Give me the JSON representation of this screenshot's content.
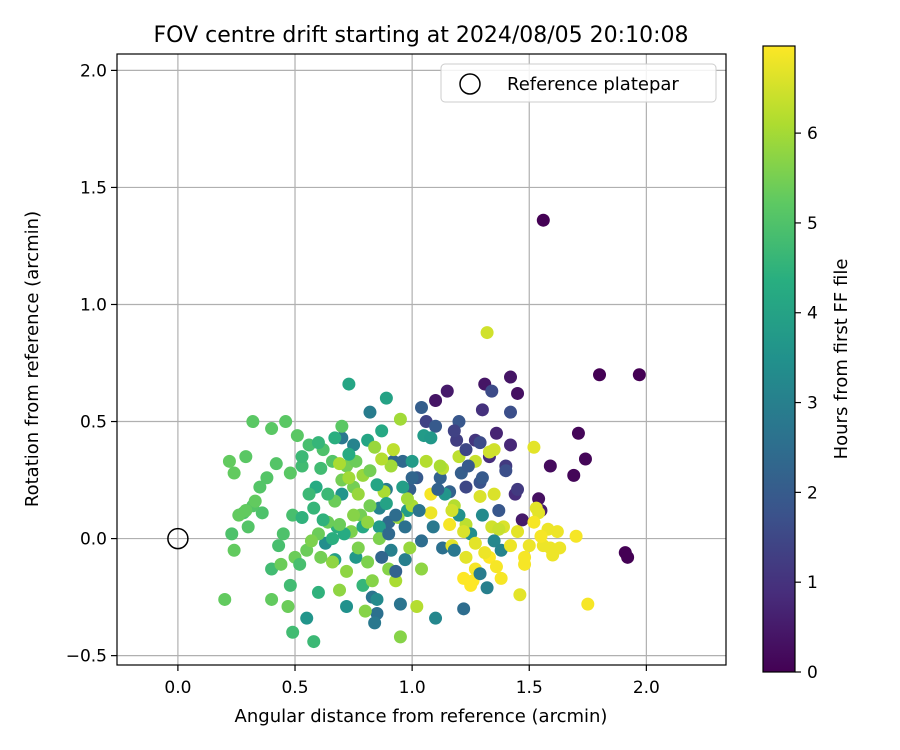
{
  "chart_data": {
    "type": "scatter",
    "title": "FOV centre drift starting at 2024/08/05 20:10:08",
    "xlabel": "Angular distance from reference (arcmin)",
    "ylabel": "Rotation from reference (arcmin)",
    "xlim": [
      -0.26,
      2.34
    ],
    "ylim": [
      -0.54,
      2.07
    ],
    "xticks": [
      0.0,
      0.5,
      1.0,
      1.5,
      2.0
    ],
    "xtick_labels": [
      "0.0",
      "0.5",
      "1.0",
      "1.5",
      "2.0"
    ],
    "yticks": [
      -0.5,
      0.0,
      0.5,
      1.0,
      1.5,
      2.0
    ],
    "ytick_labels": [
      "−0.5",
      "0.0",
      "0.5",
      "1.0",
      "1.5",
      "2.0"
    ],
    "grid": true,
    "legend": {
      "placement": "top-right",
      "entries": [
        "Reference platepar"
      ]
    },
    "reference_point": {
      "x": 0.0,
      "y": 0.0
    },
    "colorbar": {
      "label": "Hours from first FF file",
      "colormap": "viridis",
      "min": 0,
      "max": 6.97,
      "ticks": [
        0,
        1,
        2,
        3,
        4,
        5,
        6
      ],
      "tick_labels": [
        "0",
        "1",
        "2",
        "3",
        "4",
        "5",
        "6"
      ]
    },
    "points": [
      [
        1.56,
        1.36,
        0.0
      ],
      [
        1.8,
        0.7,
        0.0
      ],
      [
        1.97,
        0.7,
        0.0
      ],
      [
        1.91,
        -0.06,
        0.0
      ],
      [
        1.92,
        -0.08,
        0.0
      ],
      [
        1.71,
        0.45,
        0.1
      ],
      [
        1.74,
        0.34,
        0.1
      ],
      [
        1.69,
        0.27,
        0.1
      ],
      [
        1.59,
        0.31,
        0.2
      ],
      [
        1.54,
        0.17,
        0.3
      ],
      [
        1.45,
        0.62,
        0.3
      ],
      [
        1.42,
        0.69,
        0.4
      ],
      [
        1.31,
        0.66,
        0.4
      ],
      [
        1.1,
        0.59,
        0.4
      ],
      [
        1.15,
        0.63,
        0.5
      ],
      [
        1.47,
        0.08,
        0.5
      ],
      [
        1.55,
        0.12,
        0.6
      ],
      [
        1.36,
        0.45,
        0.7
      ],
      [
        1.42,
        0.4,
        0.8
      ],
      [
        1.33,
        0.35,
        0.9
      ],
      [
        1.44,
        0.19,
        0.9
      ],
      [
        1.3,
        0.55,
        1.0
      ],
      [
        1.27,
        0.42,
        1.1
      ],
      [
        1.4,
        0.31,
        1.2
      ],
      [
        1.19,
        0.42,
        1.3
      ],
      [
        1.06,
        0.5,
        1.4
      ],
      [
        1.23,
        0.22,
        1.5
      ],
      [
        1.34,
        0.63,
        1.6
      ],
      [
        1.42,
        0.54,
        1.7
      ],
      [
        1.29,
        0.24,
        1.8
      ],
      [
        1.2,
        0.5,
        1.9
      ],
      [
        1.1,
        0.48,
        2.0
      ],
      [
        1.02,
        0.26,
        2.0
      ],
      [
        0.99,
        0.21,
        2.1
      ],
      [
        1.04,
        0.56,
        2.1
      ],
      [
        1.12,
        0.26,
        2.2
      ],
      [
        1.16,
        0.2,
        2.2
      ],
      [
        0.92,
        0.33,
        2.3
      ],
      [
        1.0,
        0.26,
        2.3
      ],
      [
        0.9,
        0.07,
        2.4
      ],
      [
        0.96,
        0.33,
        2.4
      ],
      [
        1.04,
        -0.01,
        2.5
      ],
      [
        1.22,
        -0.3,
        2.5
      ],
      [
        1.13,
        -0.04,
        2.6
      ],
      [
        0.85,
        -0.32,
        2.6
      ],
      [
        0.83,
        -0.25,
        2.7
      ],
      [
        0.95,
        -0.28,
        2.7
      ],
      [
        0.84,
        -0.36,
        2.8
      ],
      [
        0.7,
        0.43,
        2.8
      ],
      [
        0.82,
        0.54,
        2.9
      ],
      [
        0.89,
        0.21,
        2.9
      ],
      [
        0.91,
        -0.05,
        3.0
      ],
      [
        0.97,
        -0.09,
        3.0
      ],
      [
        0.75,
        0.4,
        3.1
      ],
      [
        0.86,
        0.13,
        3.1
      ],
      [
        1.1,
        -0.34,
        3.2
      ],
      [
        0.85,
        -0.26,
        3.3
      ],
      [
        0.63,
        -0.02,
        3.4
      ],
      [
        0.72,
        -0.29,
        3.5
      ],
      [
        0.55,
        -0.34,
        3.6
      ],
      [
        0.7,
        0.19,
        3.6
      ],
      [
        0.76,
        -0.08,
        3.7
      ],
      [
        0.86,
        0.05,
        3.8
      ],
      [
        0.98,
        0.12,
        3.8
      ],
      [
        0.67,
        -0.09,
        3.9
      ],
      [
        0.89,
        0.6,
        4.0
      ],
      [
        0.73,
        0.66,
        4.1
      ],
      [
        0.81,
        0.42,
        4.1
      ],
      [
        0.87,
        0.46,
        4.2
      ],
      [
        0.59,
        0.22,
        4.3
      ],
      [
        0.68,
        0.05,
        4.4
      ],
      [
        0.6,
        -0.23,
        4.5
      ],
      [
        0.79,
        -0.2,
        4.6
      ],
      [
        0.58,
        -0.44,
        4.7
      ],
      [
        0.49,
        -0.4,
        4.8
      ],
      [
        0.4,
        -0.13,
        4.8
      ],
      [
        0.43,
        -0.03,
        4.9
      ],
      [
        0.49,
        0.1,
        4.9
      ],
      [
        0.36,
        0.11,
        5.0
      ],
      [
        0.23,
        0.02,
        5.0
      ],
      [
        0.28,
        0.11,
        5.0
      ],
      [
        0.32,
        0.14,
        5.1
      ],
      [
        0.38,
        0.26,
        5.1
      ],
      [
        0.42,
        0.32,
        5.1
      ],
      [
        0.48,
        0.28,
        5.2
      ],
      [
        0.51,
        0.44,
        5.2
      ],
      [
        0.46,
        0.5,
        5.2
      ],
      [
        0.4,
        0.47,
        5.2
      ],
      [
        0.32,
        0.5,
        5.2
      ],
      [
        0.29,
        0.35,
        5.2
      ],
      [
        0.22,
        0.33,
        5.3
      ],
      [
        0.24,
        0.28,
        5.3
      ],
      [
        0.26,
        0.1,
        5.3
      ],
      [
        0.29,
        0.12,
        5.3
      ],
      [
        0.33,
        0.16,
        5.3
      ],
      [
        0.24,
        -0.05,
        5.3
      ],
      [
        0.2,
        -0.26,
        5.3
      ],
      [
        0.4,
        -0.26,
        5.3
      ],
      [
        0.47,
        -0.29,
        5.4
      ],
      [
        0.44,
        -0.11,
        5.4
      ],
      [
        0.5,
        -0.08,
        5.4
      ],
      [
        0.55,
        -0.05,
        5.4
      ],
      [
        0.6,
        0.02,
        5.4
      ],
      [
        0.64,
        0.07,
        5.4
      ],
      [
        0.67,
        0.16,
        5.4
      ],
      [
        0.7,
        0.25,
        5.5
      ],
      [
        0.72,
        0.31,
        5.5
      ],
      [
        0.75,
        0.22,
        5.5
      ],
      [
        0.78,
        0.1,
        5.5
      ],
      [
        0.74,
        0.03,
        5.6
      ],
      [
        0.77,
        -0.04,
        5.6
      ],
      [
        0.81,
        -0.1,
        5.6
      ],
      [
        0.83,
        -0.18,
        5.7
      ],
      [
        0.8,
        -0.31,
        5.7
      ],
      [
        0.95,
        -0.42,
        5.7
      ],
      [
        0.66,
        -0.1,
        5.8
      ],
      [
        0.69,
        -0.22,
        5.8
      ],
      [
        0.72,
        -0.14,
        5.8
      ],
      [
        0.79,
        0.27,
        5.9
      ],
      [
        0.84,
        0.39,
        5.9
      ],
      [
        0.95,
        0.51,
        6.0
      ],
      [
        0.91,
        0.31,
        6.0
      ],
      [
        0.88,
        0.2,
        6.1
      ],
      [
        0.93,
        -0.18,
        6.1
      ],
      [
        1.02,
        -0.29,
        6.2
      ],
      [
        1.06,
        0.33,
        6.2
      ],
      [
        1.13,
        0.3,
        6.3
      ],
      [
        1.2,
        0.35,
        6.3
      ],
      [
        1.27,
        0.33,
        6.4
      ],
      [
        1.32,
        0.88,
        6.5
      ],
      [
        1.33,
        0.37,
        6.5
      ],
      [
        1.35,
        0.38,
        6.5
      ],
      [
        1.29,
        0.18,
        6.6
      ],
      [
        1.35,
        0.19,
        6.6
      ],
      [
        1.39,
        0.05,
        6.6
      ],
      [
        1.52,
        0.39,
        6.7
      ],
      [
        1.53,
        0.13,
        6.7
      ],
      [
        1.54,
        0.11,
        6.7
      ],
      [
        1.45,
        0.03,
        6.7
      ],
      [
        1.5,
        -0.03,
        6.8
      ],
      [
        1.56,
        -0.03,
        6.8
      ],
      [
        1.58,
        0.04,
        6.8
      ],
      [
        1.62,
        0.03,
        6.8
      ],
      [
        1.63,
        -0.04,
        6.8
      ],
      [
        1.6,
        -0.07,
        6.8
      ],
      [
        1.7,
        0.01,
        6.9
      ],
      [
        1.75,
        -0.28,
        6.9
      ],
      [
        1.48,
        -0.08,
        6.9
      ],
      [
        1.48,
        -0.11,
        6.9
      ],
      [
        1.38,
        -0.17,
        6.9
      ],
      [
        1.27,
        -0.13,
        6.9
      ],
      [
        1.26,
        -0.18,
        7.0
      ],
      [
        1.25,
        -0.2,
        7.0
      ],
      [
        1.22,
        -0.17,
        7.0
      ],
      [
        1.33,
        -0.08,
        7.0
      ],
      [
        1.08,
        0.19,
        6.9
      ],
      [
        1.16,
        0.06,
        6.9
      ],
      [
        1.08,
        0.11,
        6.8
      ],
      [
        1.17,
        -0.03,
        6.7
      ],
      [
        1.23,
        -0.08,
        6.7
      ],
      [
        1.34,
        0.05,
        6.5
      ],
      [
        1.37,
        0.04,
        6.4
      ],
      [
        1.23,
        0.06,
        6.3
      ],
      [
        1.18,
        0.14,
        6.2
      ],
      [
        1.12,
        0.31,
        6.1
      ],
      [
        1.0,
        0.14,
        6.1
      ],
      [
        0.98,
        0.17,
        6.0
      ],
      [
        0.94,
        0.09,
        5.9
      ],
      [
        0.99,
        -0.04,
        5.9
      ],
      [
        1.04,
        -0.13,
        5.8
      ],
      [
        0.9,
        -0.13,
        5.7
      ],
      [
        0.86,
        0.0,
        5.6
      ],
      [
        0.82,
        0.14,
        5.5
      ],
      [
        0.82,
        0.29,
        5.5
      ],
      [
        0.76,
        0.33,
        5.4
      ],
      [
        0.7,
        0.48,
        5.2
      ],
      [
        0.66,
        0.33,
        5.1
      ],
      [
        0.62,
        0.38,
        5.0
      ],
      [
        0.56,
        0.4,
        4.9
      ],
      [
        0.53,
        0.31,
        4.8
      ],
      [
        0.61,
        0.3,
        4.8
      ],
      [
        0.64,
        0.19,
        4.7
      ],
      [
        0.58,
        0.13,
        4.6
      ],
      [
        0.62,
        0.08,
        4.5
      ],
      [
        0.53,
        0.09,
        4.5
      ],
      [
        0.66,
        0.0,
        4.4
      ],
      [
        0.71,
        0.02,
        4.3
      ],
      [
        0.79,
        0.05,
        4.2
      ],
      [
        0.85,
        0.23,
        4.1
      ],
      [
        0.89,
        0.15,
        4.0
      ],
      [
        0.96,
        0.22,
        3.9
      ],
      [
        1.0,
        0.33,
        3.8
      ],
      [
        1.05,
        0.44,
        3.8
      ],
      [
        1.08,
        0.43,
        3.7
      ],
      [
        1.14,
        0.19,
        3.6
      ],
      [
        1.2,
        0.1,
        3.5
      ],
      [
        1.25,
        0.02,
        3.4
      ],
      [
        1.3,
        0.1,
        3.3
      ],
      [
        1.35,
        -0.01,
        3.2
      ],
      [
        1.38,
        -0.05,
        3.1
      ],
      [
        1.32,
        -0.21,
        3.0
      ],
      [
        1.29,
        -0.15,
        2.9
      ],
      [
        1.18,
        -0.05,
        2.8
      ],
      [
        1.09,
        0.05,
        2.8
      ],
      [
        1.03,
        0.12,
        2.7
      ],
      [
        0.97,
        0.05,
        2.6
      ],
      [
        0.93,
        0.1,
        2.5
      ],
      [
        0.9,
        0.02,
        2.4
      ],
      [
        0.87,
        -0.08,
        2.3
      ],
      [
        0.93,
        -0.14,
        2.2
      ],
      [
        1.11,
        0.21,
        2.2
      ],
      [
        1.21,
        0.28,
        2.1
      ],
      [
        1.24,
        0.31,
        2.0
      ],
      [
        1.3,
        0.26,
        2.0
      ],
      [
        1.37,
        0.12,
        1.9
      ],
      [
        1.4,
        0.29,
        1.7
      ],
      [
        1.29,
        0.41,
        1.6
      ],
      [
        1.23,
        0.38,
        1.5
      ],
      [
        1.18,
        0.46,
        1.4
      ],
      [
        1.45,
        0.21,
        1.2
      ],
      [
        0.57,
        -0.01,
        5.6
      ],
      [
        0.61,
        -0.08,
        5.5
      ],
      [
        0.69,
        0.06,
        5.4
      ],
      [
        0.75,
        0.1,
        5.7
      ],
      [
        0.81,
        0.07,
        5.8
      ],
      [
        0.77,
        0.19,
        5.9
      ],
      [
        0.73,
        0.26,
        6.0
      ],
      [
        0.69,
        0.32,
        6.1
      ],
      [
        0.87,
        0.34,
        6.2
      ],
      [
        0.92,
        0.38,
        6.3
      ],
      [
        0.35,
        0.22,
        5.1
      ],
      [
        0.3,
        0.05,
        5.1
      ],
      [
        0.45,
        0.02,
        5.0
      ],
      [
        0.52,
        -0.11,
        4.9
      ],
      [
        0.48,
        -0.2,
        4.8
      ],
      [
        0.56,
        0.19,
        4.7
      ],
      [
        0.53,
        0.35,
        4.7
      ],
      [
        0.6,
        0.41,
        4.6
      ],
      [
        0.67,
        0.43,
        4.4
      ],
      [
        0.73,
        0.36,
        4.3
      ],
      [
        1.17,
        0.12,
        6.5
      ],
      [
        1.22,
        0.03,
        6.6
      ],
      [
        1.27,
        -0.02,
        6.7
      ],
      [
        1.31,
        -0.06,
        6.8
      ],
      [
        1.36,
        -0.12,
        6.9
      ],
      [
        1.42,
        -0.03,
        6.8
      ],
      [
        1.46,
        -0.24,
        6.7
      ],
      [
        1.55,
        0.01,
        6.9
      ],
      [
        1.59,
        -0.04,
        6.8
      ],
      [
        1.52,
        0.07,
        6.9
      ]
    ]
  }
}
